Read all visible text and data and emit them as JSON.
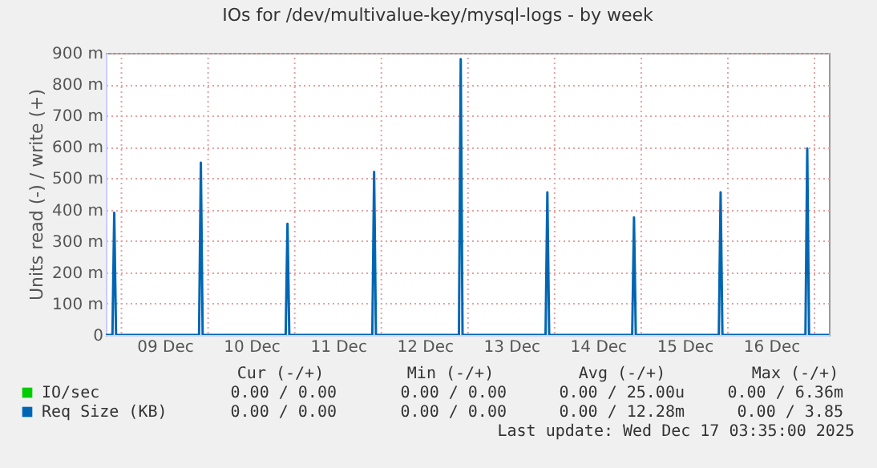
{
  "chart_data": {
    "type": "line",
    "title": "IOs for /dev/multivalue-key/mysql-logs - by week",
    "ylabel": "Units read (-) / write (+)",
    "xlim": [
      "2025-12-08T19:40",
      "2025-12-17T04:00"
    ],
    "xticks": [
      {
        "value": "2025-12-09T12:00",
        "label": "09 Dec"
      },
      {
        "value": "2025-12-10T12:00",
        "label": "10 Dec"
      },
      {
        "value": "2025-12-11T12:00",
        "label": "11 Dec"
      },
      {
        "value": "2025-12-12T12:00",
        "label": "12 Dec"
      },
      {
        "value": "2025-12-13T12:00",
        "label": "13 Dec"
      },
      {
        "value": "2025-12-14T12:00",
        "label": "14 Dec"
      },
      {
        "value": "2025-12-15T12:00",
        "label": "15 Dec"
      },
      {
        "value": "2025-12-16T12:00",
        "label": "16 Dec"
      }
    ],
    "ylim": [
      0,
      900
    ],
    "yticks": [
      0,
      {
        "value": 100,
        "label": "100 m"
      },
      {
        "value": 200,
        "label": "200 m"
      },
      {
        "value": 300,
        "label": "300 m"
      },
      {
        "value": 400,
        "label": "400 m"
      },
      {
        "value": 500,
        "label": "500 m"
      },
      {
        "value": 600,
        "label": "600 m"
      },
      {
        "value": 700,
        "label": "700 m"
      },
      {
        "value": 800,
        "label": "800 m"
      },
      {
        "value": 900,
        "label": "900 m"
      }
    ],
    "grid": true,
    "legend": "bottom",
    "marker": "none",
    "line_style": "solid",
    "series": [
      {
        "name": "IO/sec",
        "color": "#00cc00"
      },
      {
        "name": "Req Size (KB)",
        "color": "#0066b3",
        "x": [
          "2025-12-08T19:40",
          "2025-12-08T21:30",
          "2025-12-08T22:00",
          "2025-12-08T22:30",
          "2025-12-09T21:30",
          "2025-12-09T22:00",
          "2025-12-09T22:30",
          "2025-12-10T21:30",
          "2025-12-10T22:00",
          "2025-12-10T22:30",
          "2025-12-11T21:30",
          "2025-12-11T22:00",
          "2025-12-11T22:30",
          "2025-12-12T21:30",
          "2025-12-12T22:00",
          "2025-12-12T22:30",
          "2025-12-13T21:30",
          "2025-12-13T22:00",
          "2025-12-13T22:30",
          "2025-12-14T21:30",
          "2025-12-14T22:00",
          "2025-12-14T22:30",
          "2025-12-15T21:30",
          "2025-12-15T22:00",
          "2025-12-15T22:30",
          "2025-12-16T21:30",
          "2025-12-16T22:00",
          "2025-12-16T22:30",
          "2025-12-17T04:00"
        ],
        "values": [
          0,
          0,
          390,
          0,
          0,
          550,
          0,
          0,
          355,
          0,
          0,
          520,
          0,
          0,
          880,
          0,
          0,
          455,
          0,
          0,
          375,
          0,
          0,
          455,
          0,
          0,
          595,
          0,
          0
        ]
      }
    ],
    "annotations": [
      "Cur (-/+)",
      "Min (-/+)",
      "Avg (-/+)",
      "Max (-/+)",
      "0.00 /  0.00",
      "0.00 /  0.00",
      "0.00 / 25.00u",
      "0.00 /  6.36m",
      "0.00 /  0.00",
      "0.00 /  0.00",
      "0.00 / 12.28m",
      "0.00 /  3.85",
      "Last update: Wed Dec 17 03:35:00 2025"
    ]
  }
}
